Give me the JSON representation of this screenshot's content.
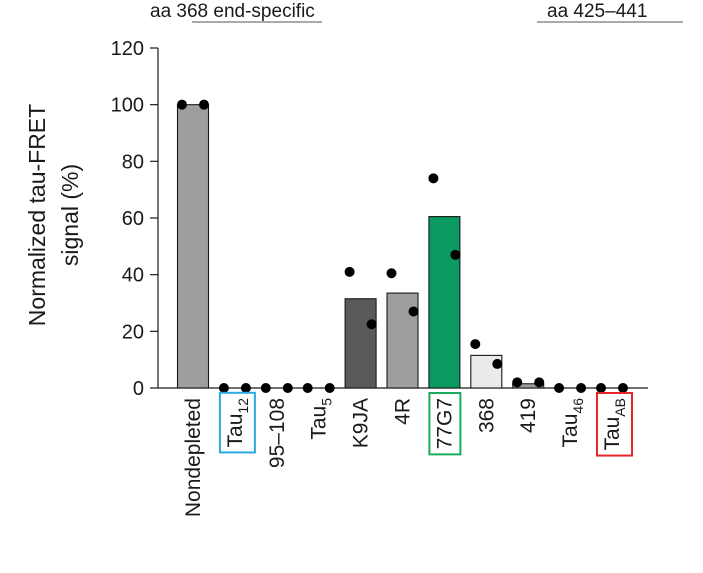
{
  "chart_data": {
    "type": "bar",
    "ylabel_line1": "Normalized tau-FRET",
    "ylabel_line2": "signal (%)",
    "ylim": [
      0,
      120
    ],
    "yticks": [
      0,
      20,
      40,
      60,
      80,
      100,
      120
    ],
    "grid": false,
    "top_annotations": [
      {
        "prefix": "aa ",
        "text": "368 end-specific"
      },
      {
        "prefix": "aa ",
        "text": "425–441"
      }
    ],
    "categories": [
      {
        "label": "Nondepleted",
        "sub": "",
        "value": 100,
        "points": [
          100,
          100
        ],
        "color": "#9e9e9e",
        "box": ""
      },
      {
        "label": "Tau",
        "sub": "12",
        "value": 0,
        "points": [
          0,
          0
        ],
        "color": "#9e9e9e",
        "box": "#29abe2"
      },
      {
        "label": "95–108",
        "sub": "",
        "value": 0,
        "points": [
          0,
          0
        ],
        "color": "#9e9e9e",
        "box": ""
      },
      {
        "label": "Tau",
        "sub": "5",
        "value": 0,
        "points": [
          0,
          0
        ],
        "color": "#9e9e9e",
        "box": ""
      },
      {
        "label": "K9JA",
        "sub": "",
        "value": 31.5,
        "points": [
          41,
          22.5
        ],
        "color": "#5a5a5a",
        "box": ""
      },
      {
        "label": "4R",
        "sub": "",
        "value": 33.5,
        "points": [
          40.5,
          27
        ],
        "color": "#9e9e9e",
        "box": ""
      },
      {
        "label": "77G7",
        "sub": "",
        "value": 60.5,
        "points": [
          74,
          47
        ],
        "color": "#0a9960",
        "box": "#1aaa5c"
      },
      {
        "label": "368",
        "sub": "",
        "value": 11.5,
        "points": [
          15.5,
          8.5
        ],
        "color": "#ebebeb",
        "box": ""
      },
      {
        "label": "419",
        "sub": "",
        "value": 1.5,
        "points": [
          2,
          2
        ],
        "color": "#9e9e9e",
        "box": ""
      },
      {
        "label": "Tau",
        "sub": "46",
        "value": 0,
        "points": [
          0,
          0
        ],
        "color": "#9e9e9e",
        "box": ""
      },
      {
        "label": "Tau",
        "sub": "AB",
        "value": 0,
        "points": [
          0,
          0
        ],
        "color": "#9e9e9e",
        "box": "#e8262a"
      }
    ]
  }
}
